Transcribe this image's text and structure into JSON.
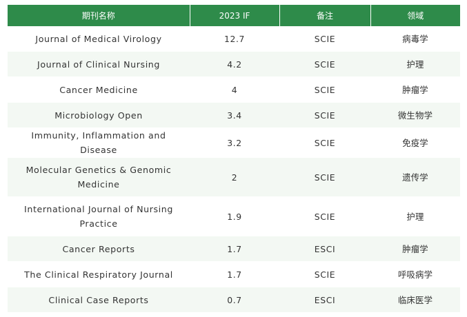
{
  "table": {
    "headers": [
      "期刊名称",
      "2023 IF",
      "备注",
      "领域"
    ],
    "rows": [
      {
        "journal": "Journal of Medical Virology",
        "if": "12.7",
        "note": "SCIE",
        "field": "病毒学"
      },
      {
        "journal": "Journal of Clinical Nursing",
        "if": "4.2",
        "note": "SCIE",
        "field": "护理"
      },
      {
        "journal": "Cancer Medicine",
        "if": "4",
        "note": "SCIE",
        "field": "肿瘤学"
      },
      {
        "journal": "Microbiology Open",
        "if": "3.4",
        "note": "SCIE",
        "field": "微生物学"
      },
      {
        "journal": "Immunity, Inflammation and Disease",
        "if": "3.2",
        "note": "SCIE",
        "field": "免疫学"
      },
      {
        "journal": "Molecular Genetics & Genomic Medicine",
        "if": "2",
        "note": "SCIE",
        "field": "遗传学"
      },
      {
        "journal": "International Journal of Nursing Practice",
        "if": "1.9",
        "note": "SCIE",
        "field": "护理"
      },
      {
        "journal": "Cancer Reports",
        "if": "1.7",
        "note": "ESCI",
        "field": "肿瘤学"
      },
      {
        "journal": "The Clinical Respiratory Journal",
        "if": "1.7",
        "note": "SCIE",
        "field": "呼吸病学"
      },
      {
        "journal": "Clinical Case Reports",
        "if": "0.7",
        "note": "ESCI",
        "field": "临床医学"
      }
    ]
  },
  "colors": {
    "header_bg": "#2e8b4a",
    "header_text": "#ffffff",
    "row_alt_bg": "#f3f8f3",
    "body_text": "#333333"
  }
}
